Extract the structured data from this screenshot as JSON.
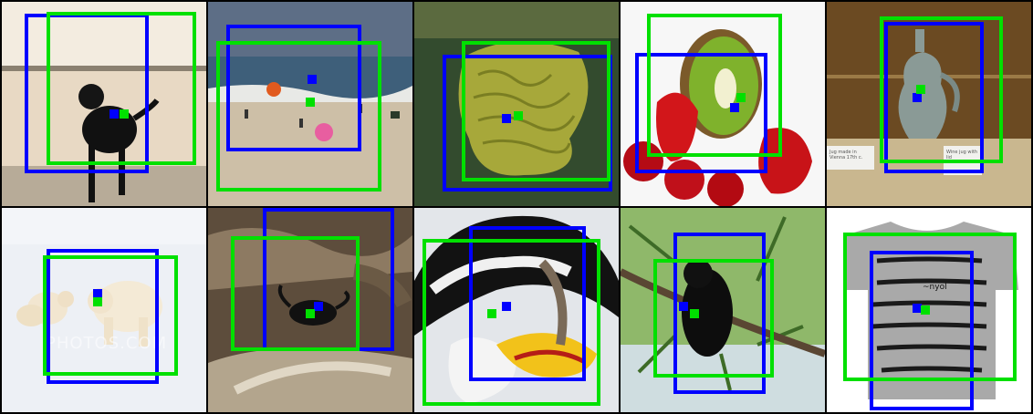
{
  "colors": {
    "box_a": "#0000ff",
    "box_b": "#00e000",
    "background": "#000000"
  },
  "tiles": [
    {
      "subject": "black-dog-on-beach",
      "bg": "#efe3d2",
      "box_a": [
        0.11,
        0.06,
        0.72,
        0.84
      ],
      "box_b": [
        0.22,
        0.05,
        0.95,
        0.8
      ],
      "dot_a": [
        0.55,
        0.55
      ],
      "dot_b": [
        0.6,
        0.55
      ]
    },
    {
      "subject": "beach-crowd",
      "bg": "#b9c4cf",
      "box_a": [
        0.09,
        0.11,
        0.75,
        0.73
      ],
      "box_b": [
        0.04,
        0.19,
        0.85,
        0.93
      ],
      "dot_a": [
        0.51,
        0.38
      ],
      "dot_b": [
        0.5,
        0.49
      ]
    },
    {
      "subject": "brain-coral",
      "bg": "#3c5a34",
      "box_a": [
        0.14,
        0.26,
        0.97,
        0.93
      ],
      "box_b": [
        0.23,
        0.19,
        0.96,
        0.88
      ],
      "dot_a": [
        0.45,
        0.57
      ],
      "dot_b": [
        0.51,
        0.56
      ]
    },
    {
      "subject": "kiwi-and-strawberries",
      "bg": "#ffffff",
      "box_a": [
        0.07,
        0.25,
        0.72,
        0.84
      ],
      "box_b": [
        0.13,
        0.06,
        0.79,
        0.76
      ],
      "dot_a": [
        0.56,
        0.52
      ],
      "dot_b": [
        0.59,
        0.47
      ]
    },
    {
      "subject": "ceramic-jug-in-museum-case",
      "bg": "#6a4b24",
      "box_a": [
        0.28,
        0.1,
        0.77,
        0.84
      ],
      "box_b": [
        0.26,
        0.07,
        0.86,
        0.79
      ],
      "dot_a": [
        0.44,
        0.47
      ],
      "dot_b": [
        0.46,
        0.43
      ]
    },
    {
      "subject": "polar-bears-on-snow",
      "bg": "#e9edf3",
      "box_a": [
        0.22,
        0.2,
        0.77,
        0.86
      ],
      "box_b": [
        0.2,
        0.23,
        0.86,
        0.82
      ],
      "dot_a": [
        0.47,
        0.42
      ],
      "dot_b": [
        0.47,
        0.46
      ]
    },
    {
      "subject": "beetle-on-dry-leaves",
      "bg": "#6d5a45",
      "box_a": [
        0.27,
        0.0,
        0.91,
        0.7
      ],
      "box_b": [
        0.11,
        0.14,
        0.74,
        0.7
      ],
      "dot_a": [
        0.54,
        0.48
      ],
      "dot_b": [
        0.5,
        0.52
      ]
    },
    {
      "subject": "hornbill-bird",
      "bg": "#d7dbe1",
      "box_a": [
        0.27,
        0.09,
        0.84,
        0.85
      ],
      "box_b": [
        0.04,
        0.15,
        0.91,
        0.97
      ],
      "dot_a": [
        0.45,
        0.48
      ],
      "dot_b": [
        0.38,
        0.52
      ]
    },
    {
      "subject": "monkey-in-tree",
      "bg": "#6c9a4a",
      "box_a": [
        0.26,
        0.12,
        0.71,
        0.91
      ],
      "box_b": [
        0.16,
        0.25,
        0.75,
        0.83
      ],
      "dot_a": [
        0.31,
        0.48
      ],
      "dot_b": [
        0.36,
        0.52
      ]
    },
    {
      "subject": "gray-tshirt-product",
      "bg": "#ffffff",
      "box_a": [
        0.21,
        0.21,
        0.72,
        0.99
      ],
      "box_b": [
        0.08,
        0.12,
        0.93,
        0.85
      ],
      "dot_a": [
        0.44,
        0.49
      ],
      "dot_b": [
        0.48,
        0.5
      ]
    }
  ],
  "texts": {
    "polar_watermark": "PHOTOS.COM",
    "museum_label_left": "Jug made in Vienna 17th c.",
    "museum_label_right": "Wine jug with lid",
    "shirt_print": "~nyol"
  }
}
